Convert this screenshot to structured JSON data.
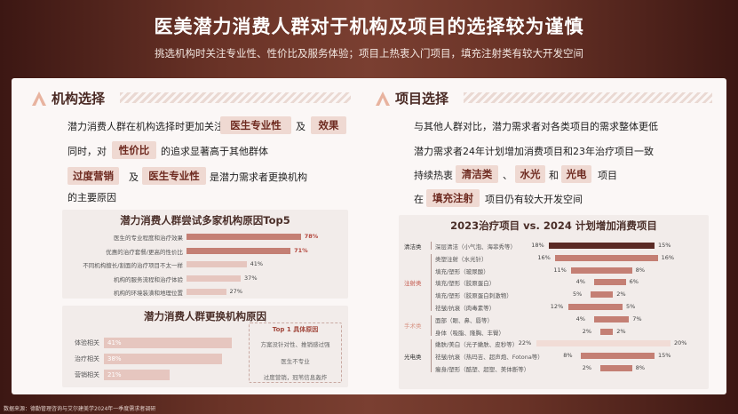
{
  "header": {
    "title": "医美潜力消费人群对于机构及项目的选择较为谨慎",
    "subtitle": "挑选机构时关注专业性、性价比及服务体验；项目上热衷入门项目，填充注射类有较大开发空间"
  },
  "left": {
    "section_title": "机构选择",
    "p1a": "潜力消费人群在机构选择时更加关注",
    "pill_a": "医生专业性",
    "p1b": "及",
    "pill_b": "效果",
    "p2a": "同时，对",
    "pill_c": "性价比",
    "p2b": "的追求显著高于其他群体",
    "pill_d": "过度营销",
    "p3a": "及",
    "pill_e": "医生专业性",
    "p3b": "是潜力需求者更换机构",
    "p4": "的主要原因"
  },
  "right": {
    "section_title": "项目选择",
    "p1": "与其他人群对比，潜力需求者对各类项目的需求整体更低",
    "p2": "潜力需求者24年计划增加消费项目和23年治疗项目一致",
    "p3a": "持续热衷",
    "pill_a": "清洁类",
    "sep1": "、",
    "pill_b": "水光",
    "p3b": "和",
    "pill_c": "光电",
    "p3c": "项目",
    "p4a": "在",
    "pill_d": "填充注射",
    "p4b": "项目仍有较大开发空间"
  },
  "chart_data": [
    {
      "type": "bar",
      "title": "潜力消费人群尝试多家机构原因Top5",
      "categories": [
        "医生的专业程度和治疗效果",
        "优惠的治疗套餐/更高的性价比",
        "不同机构擅长/割面的治疗项目不太一样",
        "机构的服务流程和治疗体验",
        "机构的环境装潢和地理位置"
      ],
      "values": [
        78,
        71,
        41,
        37,
        27
      ],
      "labels": [
        "78%",
        "71%",
        "41%",
        "37%",
        "27%"
      ],
      "xlim": [
        0,
        100
      ]
    },
    {
      "type": "bar",
      "title": "潜力消费人群更换机构原因",
      "categories": [
        "体验相关",
        "治疗相关",
        "营销相关"
      ],
      "values": [
        41,
        38,
        21
      ],
      "labels": [
        "41%",
        "38%",
        "21%"
      ],
      "xlim": [
        0,
        100
      ],
      "callout": {
        "title": "Top 1 具体原因",
        "items": [
          "方案没针对性、推销感过强",
          "医生不专业",
          "过度营销，冠苇信息轰炸"
        ]
      }
    },
    {
      "type": "bar",
      "title": "2023治疗项目 vs. 2024 计划增加消费项目",
      "groups": [
        "清洁类",
        "注射类",
        "手术类",
        "光电类"
      ],
      "categories": [
        "深层清洁（小气泡、海菲秀等）",
        "类塑注射（水光针）",
        "填充/塑形（玻尿酸）",
        "填充/塑形（胶原蛋白）",
        "填充/塑形（胶原蛋白刺激物）",
        "祛皱/抗衰（肉毒素等）",
        "面部（眼、鼻、唇等）",
        "身体（吸脂、隆胸、丰臀）",
        "嫩肤/美白（光子嫩肤、皮秒等）",
        "祛皱/抗衰（热玛吉、超声炮、Fotona等）",
        "瘦身/塑形（酷塑、超塑、美体断等）"
      ],
      "series": [
        {
          "name": "2023治疗项目",
          "values": [
            18,
            16,
            11,
            4,
            5,
            12,
            4,
            2,
            22,
            8,
            2
          ],
          "labels": [
            "18%",
            "16%",
            "11%",
            "4%",
            "5%",
            "12%",
            "4%",
            "2%",
            "22%",
            "8%",
            "2%"
          ]
        },
        {
          "name": "2024 计划增加消费项目",
          "values": [
            15,
            16,
            8,
            6,
            2,
            5,
            7,
            2,
            20,
            15,
            8
          ],
          "labels": [
            "15%",
            "16%",
            "8%",
            "6%",
            "2%",
            "5%",
            "7%",
            "2%",
            "20%",
            "15%",
            "8%"
          ]
        }
      ]
    }
  ],
  "footnote": "数据来源：德勤管理咨询与艾尔建美学2024年一季度需求者调研",
  "colors": {
    "accent": "#c47f74",
    "dark": "#5a2a25",
    "pill_bg": "#efd9d2",
    "highlight": "#b2433a"
  }
}
